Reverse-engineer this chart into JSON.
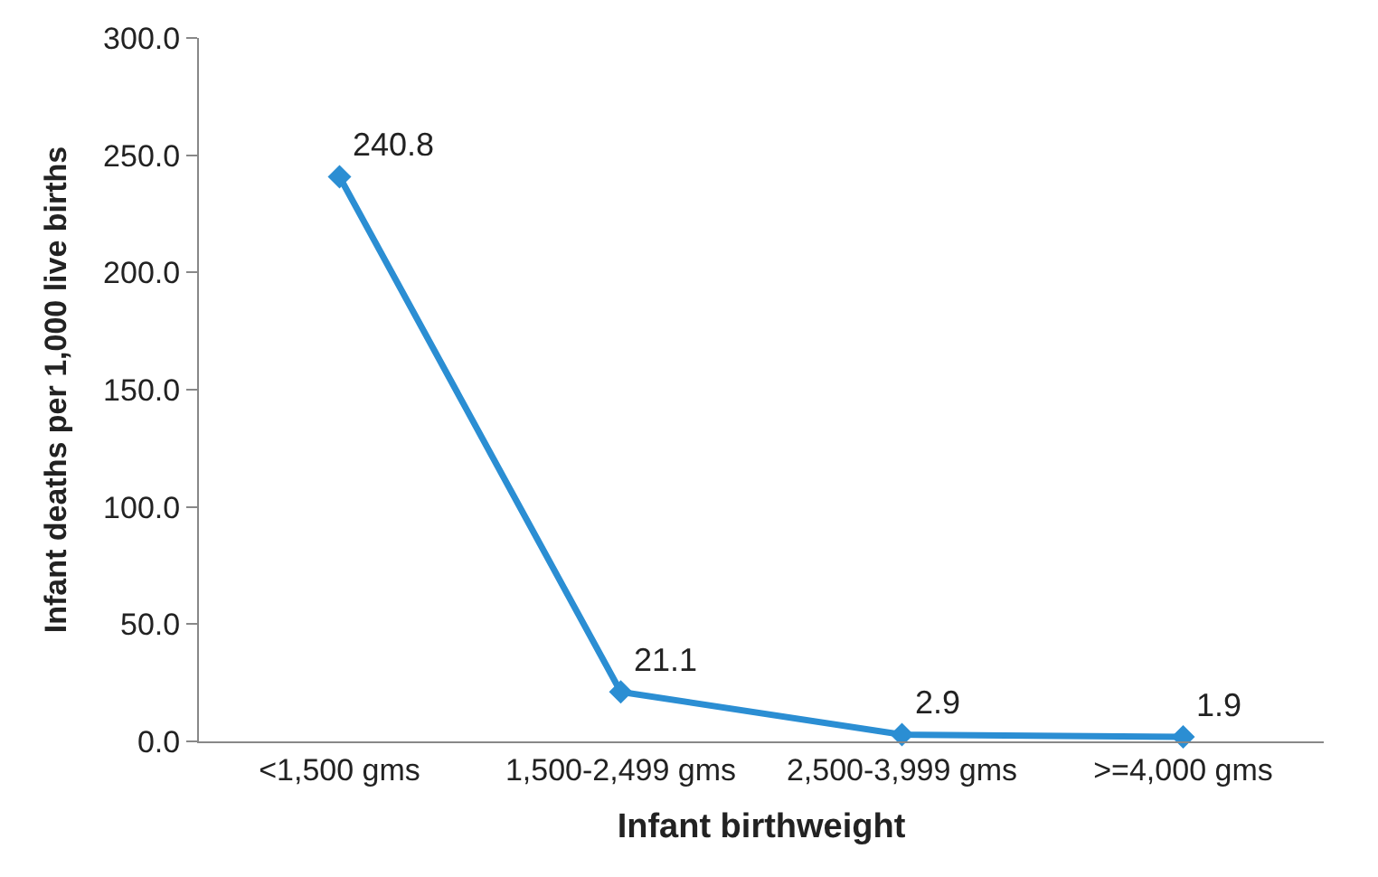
{
  "chart_data": {
    "type": "line",
    "xlabel": "Infant birthweight",
    "ylabel": "Infant deaths per 1,000 live births",
    "categories": [
      "<1,500 gms",
      "1,500-2,499 gms",
      "2,500-3,999 gms",
      ">=4,000 gms"
    ],
    "series": [
      {
        "color": "#2b8ed3",
        "values": [
          240.8,
          21.1,
          2.9,
          1.9
        ]
      }
    ],
    "ylim": [
      0,
      300
    ],
    "yticks": [
      {
        "value": 0,
        "label": "0.0"
      },
      {
        "value": 50,
        "label": "50.0"
      },
      {
        "value": 100,
        "label": "100.0"
      },
      {
        "value": 150,
        "label": "150.0"
      },
      {
        "value": 200,
        "label": "200.0"
      },
      {
        "value": 250,
        "label": "250.0"
      },
      {
        "value": 300,
        "label": "300.0"
      }
    ],
    "data_labels": true,
    "marker": "diamond",
    "line_style": "solid"
  }
}
